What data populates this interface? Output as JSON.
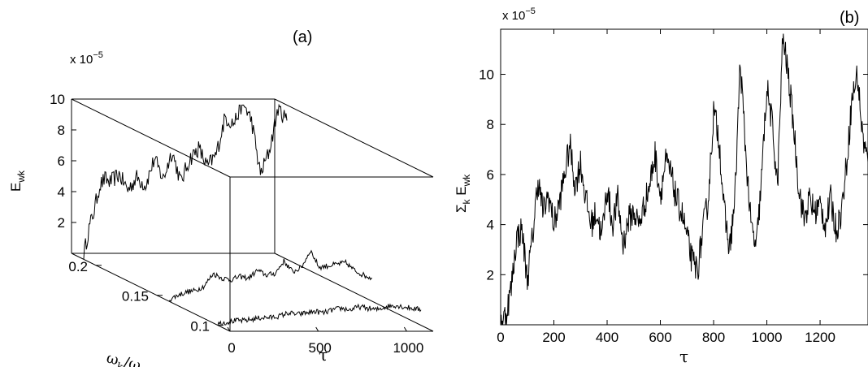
{
  "chart_data": [
    {
      "type": "line",
      "panel_label": "(a)",
      "projection": "3d",
      "exponent_label": "x 10",
      "exponent_value": "−5",
      "xlabel": "τ",
      "ylabel_main": "ω",
      "ylabel_sub1": "k",
      "ylabel_mid": "/ω",
      "ylabel_sub2": "c",
      "zlabel_main": "E",
      "zlabel_sub": "wk",
      "xlim": [
        0,
        1150
      ],
      "ylim": [
        0.09,
        0.22
      ],
      "zlim": [
        0,
        10
      ],
      "x_ticks": [
        "0",
        "500",
        "1000"
      ],
      "y_ticks": [
        "0.1",
        "0.15",
        "0.2"
      ],
      "z_ticks": [
        "2",
        "4",
        "6",
        "8",
        "10"
      ],
      "grid": false,
      "series": [
        {
          "omega": 0.21,
          "tau": [
            0,
            30,
            60,
            90,
            120,
            150,
            200,
            250,
            300,
            350,
            400,
            450,
            500,
            550,
            600,
            650,
            700,
            750,
            800,
            850,
            900,
            950,
            1000,
            1050,
            1100,
            1150
          ],
          "values": [
            0.3,
            2.0,
            3.2,
            4.8,
            5.2,
            5.0,
            5.5,
            4.5,
            5.3,
            4.8,
            6.5,
            5.2,
            7.0,
            5.0,
            6.5,
            7.2,
            6.0,
            6.8,
            9.2,
            8.8,
            10.2,
            9.0,
            5.5,
            7.0,
            9.8,
            9.0
          ]
        },
        {
          "omega": 0.14,
          "tau": [
            0,
            50,
            100,
            150,
            200,
            250,
            300,
            350,
            400,
            450,
            500,
            550,
            600,
            650,
            700,
            750,
            800,
            850,
            900,
            950,
            1000,
            1050,
            1100,
            1150
          ],
          "values": [
            0.1,
            0.4,
            0.6,
            0.7,
            1.0,
            1.8,
            1.5,
            1.4,
            1.6,
            1.5,
            2.0,
            1.7,
            1.8,
            2.6,
            1.9,
            2.2,
            3.3,
            2.2,
            2.3,
            2.4,
            2.5,
            2.0,
            1.7,
            1.5
          ]
        },
        {
          "omega": 0.1,
          "tau": [
            0,
            50,
            100,
            150,
            200,
            250,
            300,
            350,
            400,
            450,
            500,
            550,
            600,
            650,
            700,
            750,
            800,
            850,
            900,
            950,
            1000,
            1050,
            1100,
            1150
          ],
          "values": [
            0.1,
            0.2,
            0.3,
            0.3,
            0.4,
            0.5,
            0.5,
            0.6,
            0.8,
            0.7,
            0.8,
            0.9,
            0.8,
            1.0,
            1.1,
            1.0,
            1.2,
            1.1,
            1.0,
            1.2,
            1.3,
            1.2,
            1.1,
            1.0
          ]
        }
      ]
    },
    {
      "type": "line",
      "panel_label": "(b)",
      "exponent_label": "x 10",
      "exponent_value": "−5",
      "xlabel": "τ",
      "ylabel_main": "Σ",
      "ylabel_sub1": "k",
      "ylabel_mid": " E",
      "ylabel_sub2": "wk",
      "xlim": [
        0,
        1380
      ],
      "ylim": [
        0,
        11.8
      ],
      "x_ticks": [
        0,
        200,
        400,
        600,
        800,
        1000,
        1200
      ],
      "y_ticks": [
        2,
        4,
        6,
        8,
        10
      ],
      "grid": false,
      "series": [
        {
          "x": [
            0,
            20,
            40,
            60,
            80,
            100,
            120,
            140,
            160,
            180,
            200,
            220,
            240,
            260,
            280,
            300,
            320,
            340,
            360,
            380,
            400,
            420,
            440,
            460,
            480,
            500,
            520,
            540,
            560,
            580,
            600,
            620,
            640,
            660,
            680,
            700,
            720,
            740,
            760,
            780,
            800,
            820,
            840,
            860,
            880,
            900,
            920,
            940,
            960,
            980,
            1000,
            1020,
            1040,
            1060,
            1080,
            1100,
            1120,
            1140,
            1160,
            1180,
            1200,
            1220,
            1240,
            1260,
            1280,
            1300,
            1320,
            1340,
            1360,
            1380
          ],
          "y": [
            0.1,
            0.4,
            1.5,
            3.5,
            3.8,
            1.8,
            3.5,
            5.8,
            4.5,
            5.2,
            4.0,
            4.8,
            6.0,
            7.2,
            5.5,
            6.5,
            5.0,
            4.0,
            4.5,
            3.5,
            5.5,
            4.0,
            5.0,
            3.2,
            4.2,
            4.5,
            4.0,
            4.8,
            5.6,
            6.8,
            5.2,
            6.5,
            6.0,
            5.0,
            4.5,
            3.5,
            2.5,
            2.2,
            3.8,
            5.0,
            8.5,
            7.5,
            4.5,
            3.0,
            5.0,
            10.5,
            7.0,
            4.0,
            3.0,
            5.8,
            9.5,
            8.0,
            5.5,
            11.5,
            10.0,
            8.0,
            5.5,
            4.2,
            5.0,
            4.5,
            4.8,
            4.0,
            5.0,
            3.8,
            4.5,
            6.5,
            9.0,
            10.0,
            7.5,
            6.5
          ]
        }
      ]
    }
  ]
}
